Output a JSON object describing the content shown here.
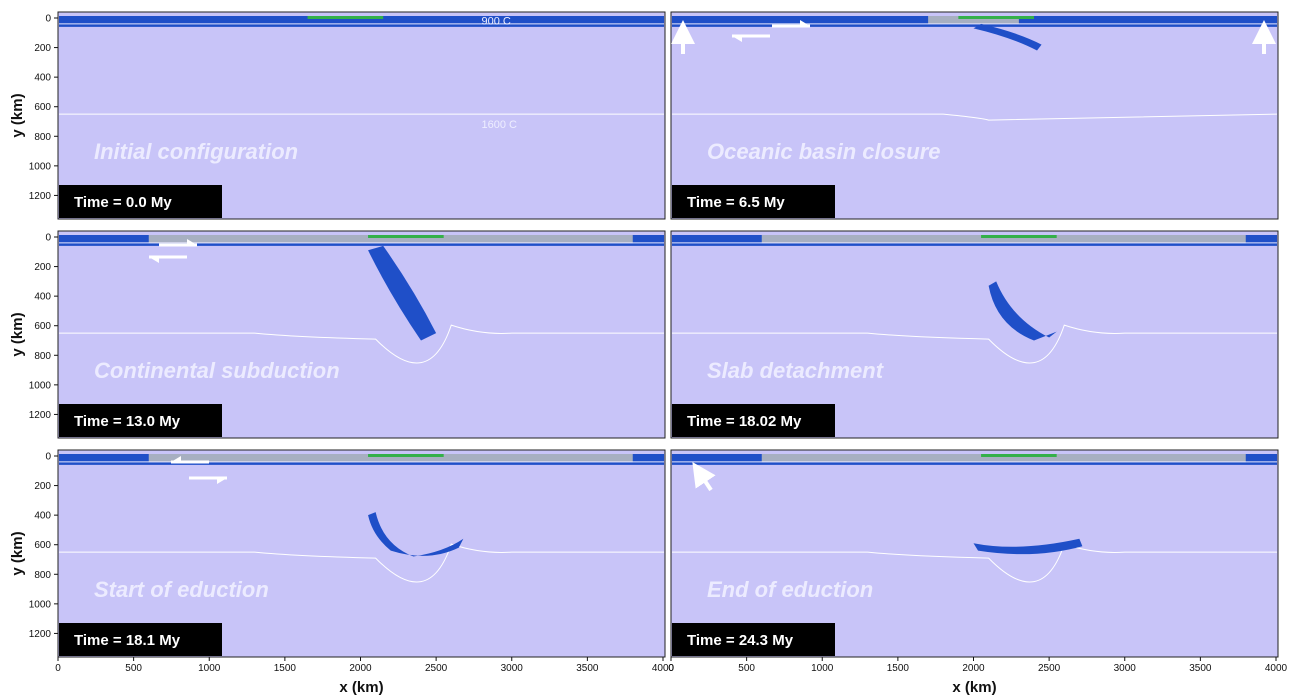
{
  "axes": {
    "ylabel": "y (km)",
    "xlabel": "x (km)",
    "y_ticks": [
      "0",
      "200",
      "400",
      "600",
      "800",
      "1000",
      "1200"
    ],
    "x_ticks_left": [
      "0",
      "500",
      "1000",
      "1500",
      "2000",
      "2500",
      "3000",
      "3500",
      "4000"
    ],
    "x_ticks_right": [
      "0",
      "500",
      "1000",
      "1500",
      "2000",
      "2500",
      "3000",
      "3500",
      "4000"
    ]
  },
  "isotherms": {
    "upper": "900 C",
    "lower": "1600 C"
  },
  "panels": [
    {
      "phase": "Initial configuration",
      "time": "Time = 0.0 My",
      "stage": 0
    },
    {
      "phase": "Oceanic basin closure",
      "time": "Time = 6.5 My",
      "stage": 1
    },
    {
      "phase": "Continental subduction",
      "time": "Time = 13.0 My",
      "stage": 2
    },
    {
      "phase": "Slab detachment",
      "time": "Time = 18.02 My",
      "stage": 3
    },
    {
      "phase": "Start of eduction",
      "time": "Time = 18.1 My",
      "stage": 4
    },
    {
      "phase": "End of eduction",
      "time": "Time = 24.3 My",
      "stage": 5
    }
  ],
  "colors": {
    "mantle": "#c8c4f8",
    "lithosphere": "#1f4fc8",
    "crust": "#bfbfbf",
    "sediment": "#34b04a",
    "isotherm": "#ffffff",
    "time_box": "#000000"
  }
}
